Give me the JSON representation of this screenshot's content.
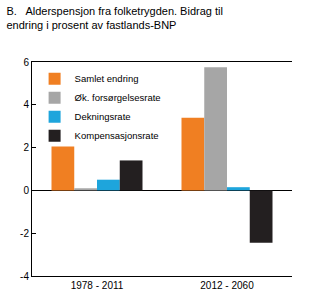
{
  "chart_data": {
    "type": "bar",
    "title": [
      "B.   Alderspensjon fra folketrygden. Bidrag til",
      "endring i prosent av fastlands-BNP"
    ],
    "categories": [
      "1978 - 2011",
      "2012 - 2060"
    ],
    "series": [
      {
        "name": "Samlet endring",
        "color": "#f07f22",
        "values": [
          2.05,
          3.4
        ]
      },
      {
        "name": "Øk. forsørgelsesrate",
        "color": "#a6a6a6",
        "values": [
          0.1,
          5.75
        ]
      },
      {
        "name": "Dekningsrate",
        "color": "#1ea5dc",
        "values": [
          0.5,
          0.15
        ]
      },
      {
        "name": "Kompensasjonsrate",
        "color": "#231f20",
        "values": [
          1.4,
          -2.45
        ]
      }
    ],
    "ylim": [
      -4,
      6
    ],
    "yticks": [
      -4,
      -2,
      0,
      2,
      4,
      6
    ],
    "y2lim": [
      -4,
      6
    ],
    "y2ticks": [
      -4,
      -2,
      0,
      2,
      4,
      6
    ],
    "grid": false,
    "legend": "top-left"
  }
}
